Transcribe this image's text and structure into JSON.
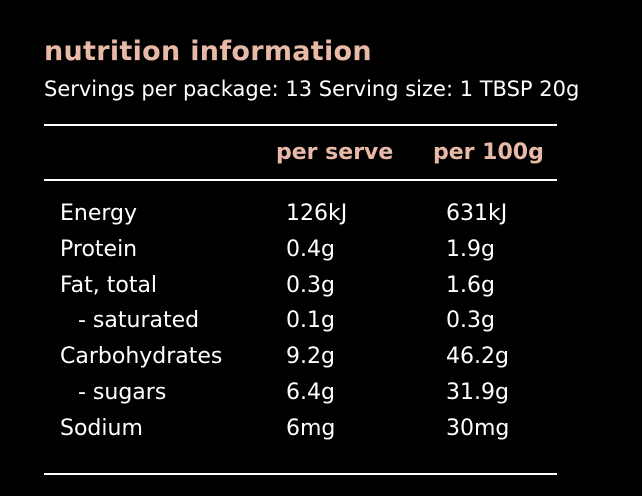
{
  "title": "nutrition information",
  "subtitle": "Servings per package: 13 Serving size: 1 TBSP 20g",
  "colors": {
    "background": "#000000",
    "accent": "#e7b9a6",
    "text": "#ffffff"
  },
  "columns": {
    "per_serve": "per serve",
    "per_100g": "per 100g"
  },
  "rows": [
    {
      "label": "Energy",
      "per_serve": "126kJ",
      "per_100g": "631kJ"
    },
    {
      "label": "Protein",
      "per_serve": "0.4g",
      "per_100g": "1.9g"
    },
    {
      "label": "Fat, total",
      "per_serve": "0.3g",
      "per_100g": "1.6g"
    },
    {
      "label": "- saturated",
      "per_serve": "0.1g",
      "per_100g": "0.3g"
    },
    {
      "label": "Carbohydrates",
      "per_serve": "9.2g",
      "per_100g": "46.2g"
    },
    {
      "label": "- sugars",
      "per_serve": "6.4g",
      "per_100g": "31.9g"
    },
    {
      "label": "Sodium",
      "per_serve": "6mg",
      "per_100g": "30mg"
    }
  ]
}
